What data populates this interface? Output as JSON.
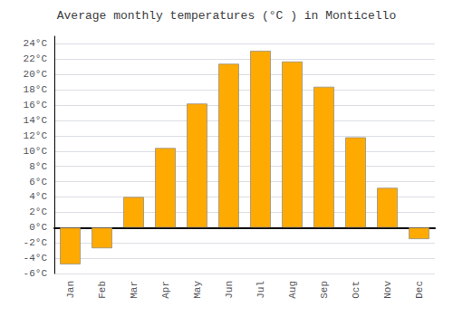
{
  "chart_data": {
    "type": "bar",
    "title": "Average monthly temperatures (°C ) in Monticello",
    "categories": [
      "Jan",
      "Feb",
      "Mar",
      "Apr",
      "May",
      "Jun",
      "Jul",
      "Aug",
      "Sep",
      "Oct",
      "Nov",
      "Dec"
    ],
    "values": [
      -4.8,
      -2.7,
      4.0,
      10.4,
      16.2,
      21.4,
      23.1,
      21.7,
      18.4,
      11.8,
      5.2,
      -1.5
    ],
    "color": "#FFAA00",
    "ylim": [
      -6,
      25
    ],
    "yticks": [
      {
        "value": -6,
        "label": "-6°C"
      },
      {
        "value": -4,
        "label": "-4°C"
      },
      {
        "value": -2,
        "label": "-2°C"
      },
      {
        "value": 0,
        "label": "0°C"
      },
      {
        "value": 2,
        "label": "2°C"
      },
      {
        "value": 4,
        "label": "4°C"
      },
      {
        "value": 6,
        "label": "6°C"
      },
      {
        "value": 8,
        "label": "8°C"
      },
      {
        "value": 10,
        "label": "10°C"
      },
      {
        "value": 12,
        "label": "12°C"
      },
      {
        "value": 14,
        "label": "14°C"
      },
      {
        "value": 16,
        "label": "16°C"
      },
      {
        "value": 18,
        "label": "18°C"
      },
      {
        "value": 20,
        "label": "20°C"
      },
      {
        "value": 22,
        "label": "22°C"
      },
      {
        "value": 24,
        "label": "24°C"
      }
    ],
    "grid": true
  }
}
